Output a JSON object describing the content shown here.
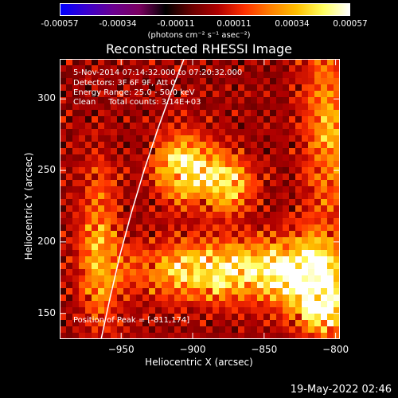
{
  "colorbar": {
    "ticks": [
      "-0.00057",
      "-0.00034",
      "-0.00011",
      "0.00011",
      "0.00034",
      "0.00057"
    ],
    "units": "(photons cm⁻² s⁻¹ asec⁻²)",
    "colormap": [
      "#0000ff",
      "#3b00cc",
      "#6a0090",
      "#7a0060",
      "#000000",
      "#6a0000",
      "#b00000",
      "#ff3000",
      "#ff8000",
      "#ffc000",
      "#ffff60",
      "#ffffff"
    ]
  },
  "annotations": {
    "time": "5-Nov-2014 07:14:32.000 to 07:20:32.000",
    "detectors": "Detectors: 3F 6F 9F, Att 0",
    "energy": "Energy Range: 25.0 - 50.0 keV",
    "clean": "Clean     Total counts: 3.14E+03",
    "peak": "Position of Peak = [-811,174]"
  },
  "footer_timestamp": "19-May-2022 02:46",
  "chart_data": {
    "type": "heatmap",
    "title": "Reconstructed RHESSI Image",
    "xlabel": "Heliocentric X (arcsec)",
    "ylabel": "Heliocentric Y (arcsec)",
    "xlim": [
      -993,
      -797
    ],
    "ylim": [
      132,
      328
    ],
    "x_ticks": [
      -950,
      -900,
      -850,
      -800
    ],
    "x_tick_labels": [
      "−950",
      "−900",
      "−850",
      "−800"
    ],
    "y_ticks": [
      150,
      200,
      250,
      300
    ],
    "y_tick_labels": [
      "150",
      "200",
      "250",
      "300"
    ],
    "clim": [
      -0.00057,
      0.00057
    ],
    "peak": [
      -811,
      174
    ],
    "limb_points": [
      [
        -964,
        132
      ],
      [
        -958,
        160
      ],
      [
        -951,
        190
      ],
      [
        -943,
        220
      ],
      [
        -934,
        250
      ],
      [
        -924,
        280
      ],
      [
        -915,
        305
      ],
      [
        -906,
        328
      ]
    ],
    "sources": [
      {
        "x": -905,
        "y": 252,
        "sx": 14,
        "sy": 16,
        "amp": 0.00052
      },
      {
        "x": -875,
        "y": 240,
        "sx": 12,
        "sy": 14,
        "amp": 0.0004
      },
      {
        "x": -880,
        "y": 180,
        "sx": 40,
        "sy": 14,
        "amp": 0.0005
      },
      {
        "x": -820,
        "y": 176,
        "sx": 18,
        "sy": 18,
        "amp": 0.00055
      },
      {
        "x": -805,
        "y": 150,
        "sx": 12,
        "sy": 14,
        "amp": 0.00038
      },
      {
        "x": -965,
        "y": 195,
        "sx": 10,
        "sy": 40,
        "amp": 0.0003
      },
      {
        "x": -805,
        "y": 280,
        "sx": 12,
        "sy": 50,
        "amp": 0.0003
      }
    ]
  }
}
